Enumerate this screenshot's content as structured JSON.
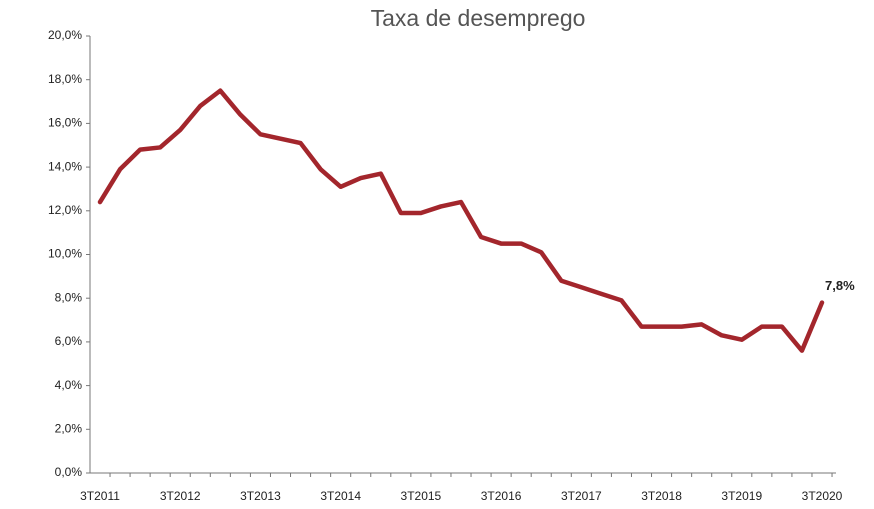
{
  "chart_data": {
    "type": "line",
    "title": "Taxa de desemprego",
    "categories": [
      "3T2011",
      null,
      null,
      null,
      "3T2012",
      null,
      null,
      null,
      "3T2013",
      null,
      null,
      null,
      "3T2014",
      null,
      null,
      null,
      "3T2015",
      null,
      null,
      null,
      "3T2016",
      null,
      null,
      null,
      "3T2017",
      null,
      null,
      null,
      "3T2018",
      null,
      null,
      null,
      "3T2019",
      null,
      null,
      null,
      "3T2020"
    ],
    "values": [
      12.4,
      13.9,
      14.8,
      14.9,
      15.7,
      16.8,
      17.5,
      16.4,
      15.5,
      15.3,
      15.1,
      13.9,
      13.1,
      13.5,
      13.7,
      11.9,
      11.9,
      12.2,
      12.4,
      10.8,
      10.5,
      10.5,
      10.1,
      8.8,
      8.5,
      8.2,
      7.9,
      6.7,
      6.7,
      6.7,
      6.8,
      6.3,
      6.1,
      6.7,
      6.7,
      5.6,
      7.8
    ],
    "value_labels": [
      null,
      null,
      null,
      null,
      null,
      null,
      null,
      null,
      null,
      null,
      null,
      null,
      null,
      null,
      null,
      null,
      null,
      null,
      null,
      null,
      null,
      null,
      null,
      null,
      null,
      null,
      null,
      null,
      null,
      null,
      null,
      null,
      null,
      null,
      null,
      null,
      "7,8%"
    ],
    "color": "#a3262c",
    "ylim": [
      0,
      20
    ],
    "yticks": [
      {
        "value": 0,
        "label": "0,0%"
      },
      {
        "value": 2,
        "label": "2,0%"
      },
      {
        "value": 4,
        "label": "4,0%"
      },
      {
        "value": 6,
        "label": "6,0%"
      },
      {
        "value": 8,
        "label": "8,0%"
      },
      {
        "value": 10,
        "label": "10,0%"
      },
      {
        "value": 12,
        "label": "12,0%"
      },
      {
        "value": 14,
        "label": "14,0%"
      },
      {
        "value": 16,
        "label": "16,0%"
      },
      {
        "value": 18,
        "label": "18,0%"
      },
      {
        "value": 20,
        "label": "20,0%"
      }
    ],
    "grid": false
  }
}
